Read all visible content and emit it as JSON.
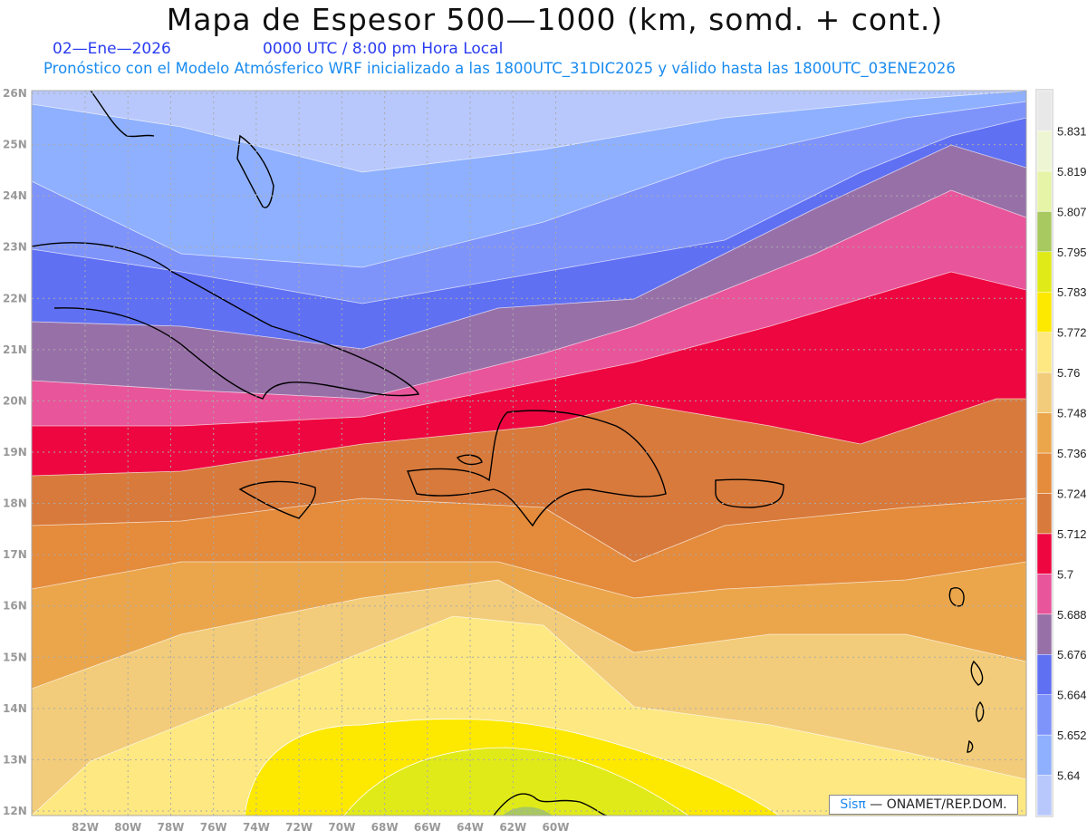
{
  "header": {
    "title": "Mapa de Espesor 500—1000 (km, somd. + cont.)",
    "date": "02—Ene—2026",
    "time": "0000 UTC / 8:00 pm Hora Local",
    "subtitle": "Pronóstico con el Modelo Atmósferico WRF inicializado a las 1800UTC_31DIC2025 y válido hasta las  1800UTC_03ENE2026"
  },
  "map": {
    "lat_labels": [
      "26N",
      "25N",
      "24N",
      "23N",
      "22N",
      "21N",
      "20N",
      "19N",
      "18N",
      "17N",
      "16N",
      "15N",
      "14N",
      "13N",
      "12N"
    ],
    "lon_labels": [
      "82W",
      "80W",
      "78W",
      "76W",
      "74W",
      "72W",
      "70W",
      "68W",
      "66W",
      "64W",
      "62W",
      "60W"
    ]
  },
  "colorbar": {
    "levels": [
      "5.64",
      "5.652",
      "5.664",
      "5.676",
      "5.688",
      "5.7",
      "5.712",
      "5.724",
      "5.736",
      "5.748",
      "5.76",
      "5.772",
      "5.783",
      "5.795",
      "5.807",
      "5.819",
      "5.831"
    ],
    "colors": [
      "#b8c8fc",
      "#8fb0ff",
      "#7f94fb",
      "#6070f3",
      "#9870a8",
      "#e8559a",
      "#ee0640",
      "#d87a3c",
      "#e48b3c",
      "#eba64c",
      "#f2cc7a",
      "#fde882",
      "#fde800",
      "#e0ea18",
      "#a8c860",
      "#e6f4a8",
      "#eef5d2",
      "#e8e8e8"
    ]
  },
  "credit": {
    "brand": "Sisπ",
    "text": " —  ONAMET/REP.DOM."
  }
}
